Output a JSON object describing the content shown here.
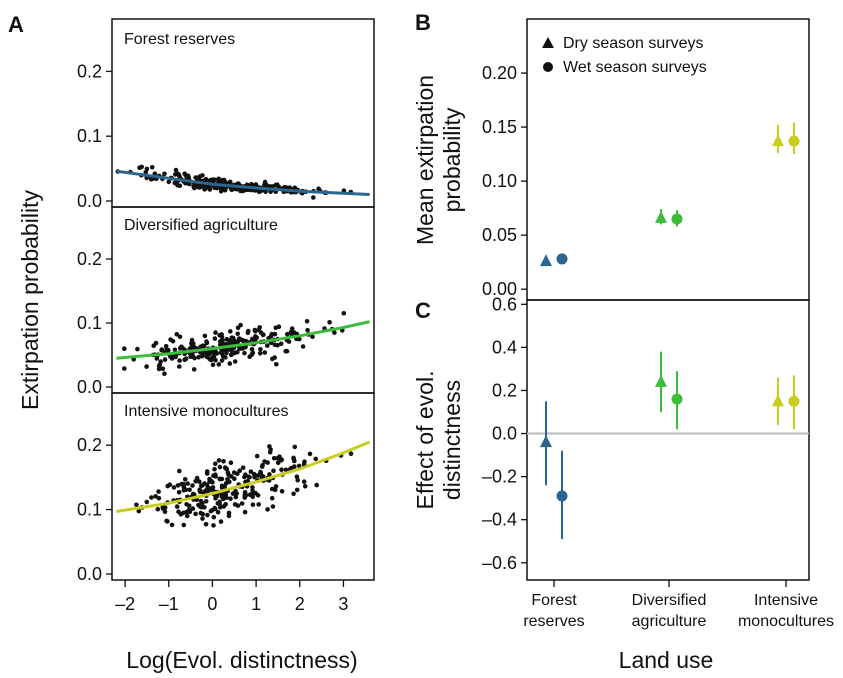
{
  "panels": {
    "A": "A",
    "B": "B",
    "C": "C"
  },
  "colors": {
    "forest": "#2b6590",
    "diversified": "#3dbb3a",
    "intensive": "#c9cd1e",
    "points": "#111111",
    "zero_line": "#bbbbbb"
  },
  "chart_data": [
    {
      "id": "A",
      "type": "scatter",
      "ylabel": "Extirpation probability",
      "xlabel": "Log(Evol. distinctness)",
      "xlim": [
        -2.3,
        3.7
      ],
      "x_ticks": [
        -2,
        -1,
        0,
        1,
        2,
        3
      ],
      "x_tick_labels": [
        "–2",
        "–1",
        "0",
        "1",
        "2",
        "3"
      ],
      "subplots": [
        {
          "title": "Forest reserves",
          "ylim": [
            0,
            0.25
          ],
          "y_ticks": [
            0,
            0.1,
            0.2
          ],
          "y_tick_labels": [
            "0.0",
            "0.1",
            "0.2"
          ],
          "fit": {
            "color": "#2b6590",
            "x": [
              -2.2,
              -1,
              0,
              1,
              2,
              3,
              3.6
            ],
            "y": [
              0.046,
              0.035,
              0.026,
              0.02,
              0.015,
              0.012,
              0.01
            ]
          },
          "points_approx": {
            "x_range": [
              -2.2,
              3.5
            ],
            "trend": "decreasing",
            "spread": 0.006
          }
        },
        {
          "title": "Diversified agriculture",
          "ylim": [
            0,
            0.25
          ],
          "y_ticks": [
            0,
            0.1,
            0.2
          ],
          "y_tick_labels": [
            "0.0",
            "0.1",
            "0.2"
          ],
          "fit": {
            "color": "#3dbb3a",
            "x": [
              -2.2,
              -1,
              0,
              1,
              2,
              3,
              3.6
            ],
            "y": [
              0.045,
              0.052,
              0.06,
              0.069,
              0.08,
              0.093,
              0.102
            ]
          },
          "points_approx": {
            "x_range": [
              -2.2,
              3.5
            ],
            "trend": "increasing",
            "spread": 0.012
          }
        },
        {
          "title": "Intensive monocultures",
          "ylim": [
            0,
            0.25
          ],
          "y_ticks": [
            0,
            0.1,
            0.2
          ],
          "y_tick_labels": [
            "0.0",
            "0.1",
            "0.2"
          ],
          "fit": {
            "color": "#c9cd1e",
            "x": [
              -2.2,
              -1,
              0,
              1,
              2,
              3,
              3.6
            ],
            "y": [
              0.097,
              0.11,
              0.125,
              0.143,
              0.163,
              0.188,
              0.205
            ]
          },
          "points_approx": {
            "x_range": [
              -2.2,
              3.5
            ],
            "trend": "increasing",
            "spread": 0.022
          }
        }
      ]
    },
    {
      "id": "B",
      "type": "scatter",
      "ylabel_lines": [
        "Mean extirpation",
        "probability"
      ],
      "ylim": [
        -0.01,
        0.25
      ],
      "y_ticks": [
        0,
        0.05,
        0.1,
        0.15,
        0.2
      ],
      "y_tick_labels": [
        "0.00",
        "0.05",
        "0.10",
        "0.15",
        "0.20"
      ],
      "legend": [
        {
          "marker": "triangle",
          "label": "Dry season surveys"
        },
        {
          "marker": "circle",
          "label": "Wet season surveys"
        }
      ],
      "categories": [
        "Forest reserves",
        "Diversified agriculture",
        "Intensive monocultures"
      ],
      "series": [
        {
          "marker": "triangle",
          "values": [
            0.026,
            0.066,
            0.137
          ],
          "lower": [
            0.024,
            0.06,
            0.126
          ],
          "upper": [
            0.029,
            0.074,
            0.152
          ]
        },
        {
          "marker": "circle",
          "values": [
            0.028,
            0.065,
            0.137
          ],
          "lower": [
            0.025,
            0.058,
            0.125
          ],
          "upper": [
            0.031,
            0.073,
            0.154
          ]
        }
      ]
    },
    {
      "id": "C",
      "type": "scatter",
      "ylabel_lines": [
        "Effect of evol.",
        "distinctness"
      ],
      "xlabel": "Land use",
      "ylim": [
        -0.68,
        0.62
      ],
      "y_ticks": [
        -0.6,
        -0.4,
        -0.2,
        0,
        0.2,
        0.4,
        0.6
      ],
      "y_tick_labels": [
        "–0.6",
        "–0.4",
        "–0.2",
        "0.0",
        "0.2",
        "0.4",
        "0.6"
      ],
      "zero_line": true,
      "categories": [
        "Forest reserves",
        "Diversified agriculture",
        "Intensive monocultures"
      ],
      "category_label_lines": [
        [
          "Forest",
          "reserves"
        ],
        [
          "Diversified",
          "agriculture"
        ],
        [
          "Intensive",
          "monocultures"
        ]
      ],
      "series": [
        {
          "marker": "triangle",
          "values": [
            -0.04,
            0.24,
            0.15
          ],
          "lower": [
            -0.24,
            0.1,
            0.04
          ],
          "upper": [
            0.15,
            0.38,
            0.26
          ]
        },
        {
          "marker": "circle",
          "values": [
            -0.29,
            0.16,
            0.15
          ],
          "lower": [
            -0.49,
            0.02,
            0.02
          ],
          "upper": [
            -0.08,
            0.29,
            0.27
          ]
        }
      ]
    }
  ]
}
